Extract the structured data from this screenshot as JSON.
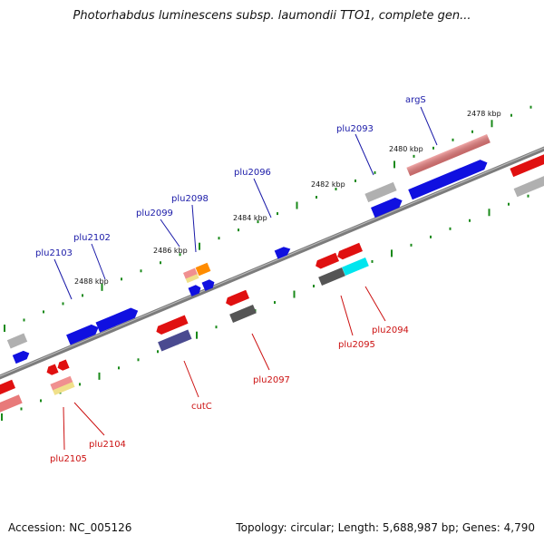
{
  "title": "Photorhabdus luminescens subsp. laumondii TTO1, complete gen...",
  "footer": {
    "accession": "Accession: NC_005126",
    "summary": "Topology: circular; Length: 5,688,987 bp; Genes: 4,790"
  },
  "colors": {
    "upper_label": "#1a1aa8",
    "lower_label": "#cc1111",
    "tick": "#1a8a1a",
    "backbone": "#808080"
  },
  "scale_labels": [
    "2478 kbp",
    "2480 kbp",
    "2482 kbp",
    "2484 kbp",
    "2486 kbp",
    "2488 kbp"
  ],
  "upper_genes": [
    "argS",
    "plu2093",
    "plu2096",
    "plu2098",
    "plu2099",
    "plu2102",
    "plu2103"
  ],
  "lower_genes": [
    "plu2094",
    "plu2095",
    "plu2097",
    "cutC",
    "plu2104",
    "plu2105"
  ]
}
